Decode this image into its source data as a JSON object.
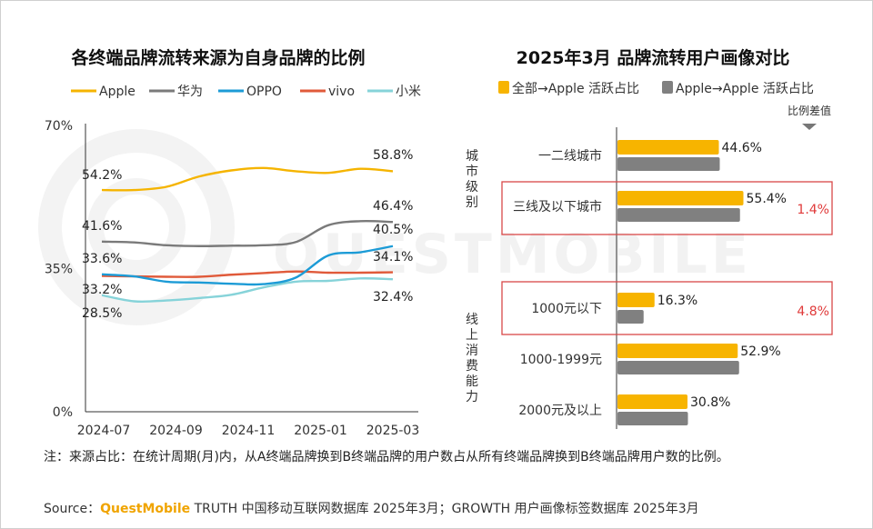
{
  "watermark": "QUESTMOBILE",
  "left_chart": {
    "title": "各终端品牌流转来源为自身品牌的比例"
  },
  "right_chart": {
    "title": "2025年3月 品牌流转用户画像对比",
    "diff_header": "比例差值",
    "groups": [
      "城市级别",
      "线上消费能力"
    ]
  },
  "footnote": "注：来源占比：在统计周期(月)内，从A终端品牌换到B终端品牌的用户数占从所有终端品牌换到B终端品牌用户数的比例。",
  "source": {
    "prefix": "Source：",
    "brand": "QuestMobile",
    "rest": " TRUTH 中国移动互联网数据库 2025年3月；GROWTH 用户画像标签数据库 2025年3月"
  },
  "chart_data": [
    {
      "type": "line",
      "title": "各终端品牌流转来源为自身品牌的比例",
      "ylim": [
        0,
        70
      ],
      "yticks": [
        "0%",
        "35%",
        "70%"
      ],
      "x_ticks": [
        "2024-07",
        "2024-09",
        "2024-11",
        "2025-01",
        "2025-03"
      ],
      "grid": false,
      "legend": "top",
      "series": [
        {
          "name": "Apple",
          "color": "#f5b400",
          "values": [
            54.2,
            54.2,
            55.0,
            57.5,
            59.0,
            59.6,
            58.8,
            58.4,
            59.4,
            58.8
          ],
          "start_label": "54.2%",
          "end_label": "58.8%"
        },
        {
          "name": "华为",
          "color": "#7a7a7a",
          "values": [
            41.6,
            41.4,
            40.7,
            40.5,
            40.6,
            40.7,
            41.5,
            45.6,
            46.6,
            46.4
          ],
          "start_label": "41.6%",
          "end_label": "46.4%"
        },
        {
          "name": "OPPO",
          "color": "#1c9bd6",
          "values": [
            33.6,
            33.1,
            31.8,
            31.6,
            31.3,
            31.2,
            32.8,
            38.2,
            39.0,
            40.5
          ],
          "start_label": "33.6%",
          "end_label": "40.5%"
        },
        {
          "name": "vivo",
          "color": "#e05a3a",
          "values": [
            33.2,
            33.1,
            33.0,
            33.0,
            33.5,
            33.9,
            34.3,
            34.0,
            34.0,
            34.1
          ],
          "start_label": "33.2%",
          "end_label": "34.1%"
        },
        {
          "name": "小米",
          "color": "#86d3d9",
          "values": [
            28.5,
            27.0,
            27.2,
            27.8,
            28.6,
            30.4,
            31.8,
            32.0,
            32.6,
            32.4
          ],
          "start_label": "28.5%",
          "end_label": "32.4%"
        }
      ]
    },
    {
      "type": "bar",
      "title": "2025年3月 品牌流转用户画像对比",
      "orientation": "horizontal",
      "legend": "top",
      "categories": [
        "一二线城市",
        "三线及以下城市",
        "1000元以下",
        "1000-1999元",
        "2000元及以上"
      ],
      "series": [
        {
          "name": "全部→Apple 活跃占比",
          "color": "#f7b400",
          "values": [
            44.6,
            55.4,
            16.3,
            52.9,
            30.8
          ]
        },
        {
          "name": "Apple→Apple 活跃占比",
          "color": "#808080",
          "values": [
            45.0,
            53.9,
            11.5,
            53.5,
            31.0
          ]
        }
      ],
      "value_labels": [
        "44.6%",
        "55.4%",
        "16.3%",
        "52.9%",
        "30.8%"
      ],
      "differences": [
        {
          "category": "三线及以下城市",
          "label": "1.4%"
        },
        {
          "category": "1000元以下",
          "label": "4.8%"
        }
      ]
    }
  ]
}
